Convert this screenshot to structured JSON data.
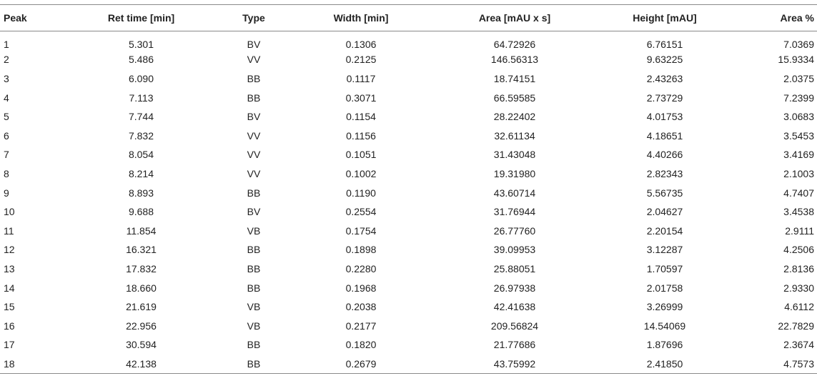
{
  "table": {
    "headers": [
      "Peak",
      "Ret time [min]",
      "Type",
      "Width [min]",
      "Area [mAU x s]",
      "Height [mAU]",
      "Area %"
    ],
    "rows": [
      [
        "1",
        "5.301",
        "BV",
        "0.1306",
        "64.72926",
        "6.76151",
        "7.0369"
      ],
      [
        "2",
        "5.486",
        "VV",
        "0.2125",
        "146.56313",
        "9.63225",
        "15.9334"
      ],
      [
        "3",
        "6.090",
        "BB",
        "0.1117",
        "18.74151",
        "2.43263",
        "2.0375"
      ],
      [
        "4",
        "7.113",
        "BB",
        "0.3071",
        "66.59585",
        "2.73729",
        "7.2399"
      ],
      [
        "5",
        "7.744",
        "BV",
        "0.1154",
        "28.22402",
        "4.01753",
        "3.0683"
      ],
      [
        "6",
        "7.832",
        "VV",
        "0.1156",
        "32.61134",
        "4.18651",
        "3.5453"
      ],
      [
        "7",
        "8.054",
        "VV",
        "0.1051",
        "31.43048",
        "4.40266",
        "3.4169"
      ],
      [
        "8",
        "8.214",
        "VV",
        "0.1002",
        "19.31980",
        "2.82343",
        "2.1003"
      ],
      [
        "9",
        "8.893",
        "BB",
        "0.1190",
        "43.60714",
        "5.56735",
        "4.7407"
      ],
      [
        "10",
        "9.688",
        "BV",
        "0.2554",
        "31.76944",
        "2.04627",
        "3.4538"
      ],
      [
        "11",
        "11.854",
        "VB",
        "0.1754",
        "26.77760",
        "2.20154",
        "2.9111"
      ],
      [
        "12",
        "16.321",
        "BB",
        "0.1898",
        "39.09953",
        "3.12287",
        "4.2506"
      ],
      [
        "13",
        "17.832",
        "BB",
        "0.2280",
        "25.88051",
        "1.70597",
        "2.8136"
      ],
      [
        "14",
        "18.660",
        "BB",
        "0.1968",
        "26.97938",
        "2.01758",
        "2.9330"
      ],
      [
        "15",
        "21.619",
        "VB",
        "0.2038",
        "42.41638",
        "3.26999",
        "4.6112"
      ],
      [
        "16",
        "22.956",
        "VB",
        "0.2177",
        "209.56824",
        "14.54069",
        "22.7829"
      ],
      [
        "17",
        "30.594",
        "BB",
        "0.1820",
        "21.77686",
        "1.87696",
        "2.3674"
      ],
      [
        "18",
        "42.138",
        "BB",
        "0.2679",
        "43.75992",
        "2.41850",
        "4.7573"
      ]
    ]
  }
}
